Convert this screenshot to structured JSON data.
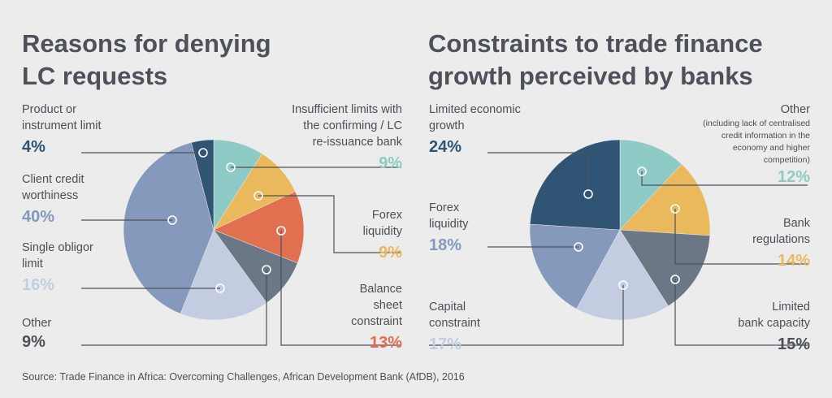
{
  "charts": [
    {
      "title_lines": [
        "Reasons for denying",
        "LC requests"
      ]
    },
    {
      "title_lines": [
        "Constraints to trade finance",
        "growth perceived by banks"
      ]
    }
  ],
  "source": "Source: Trade Finance in Africa: Overcoming Challenges, African Development Bank (AfDB), 2016",
  "chart_data": [
    {
      "type": "pie",
      "title": "Reasons for denying LC requests",
      "slices": [
        {
          "lines": [
            "Insufficient limits with",
            "the confirming / LC",
            "re-issuance bank"
          ],
          "value": 9,
          "label": "9%",
          "color": "#8ecbc6"
        },
        {
          "lines": [
            "Forex",
            "liquidity"
          ],
          "value": 9,
          "label": "9%",
          "color": "#eab95c"
        },
        {
          "lines": [
            "Balance",
            "sheet",
            "constraint"
          ],
          "value": 13,
          "label": "13%",
          "color": "#e0704f"
        },
        {
          "lines": [
            "Other"
          ],
          "value": 9,
          "label": "9%",
          "color": "#6c7785"
        },
        {
          "lines": [
            "Single obligor",
            "limit"
          ],
          "value": 16,
          "label": "16%",
          "color": "#c3cce1"
        },
        {
          "lines": [
            "Client credit",
            "worthiness"
          ],
          "value": 40,
          "label": "40%",
          "color": "#8499bc"
        },
        {
          "lines": [
            "Product or",
            "instrument limit"
          ],
          "value": 4,
          "label": "4%",
          "color": "#2f5474"
        }
      ]
    },
    {
      "type": "pie",
      "title": "Constraints to trade finance growth perceived by banks",
      "slices": [
        {
          "lines": [
            "Other"
          ],
          "note": [
            "(including lack of centralised",
            "credit information in the",
            "economy and higher",
            "competition)"
          ],
          "value": 12,
          "label": "12%",
          "color": "#8ecbc6"
        },
        {
          "lines": [
            "Bank",
            "regulations"
          ],
          "value": 14,
          "label": "14%",
          "color": "#eab95c"
        },
        {
          "lines": [
            "Limited",
            "bank capacity"
          ],
          "value": 15,
          "label": "15%",
          "color": "#6c7785"
        },
        {
          "lines": [
            "Capital",
            "constraint"
          ],
          "value": 17,
          "label": "17%",
          "color": "#c3cce1"
        },
        {
          "lines": [
            "Forex",
            "liquidity"
          ],
          "value": 18,
          "label": "18%",
          "color": "#8499bc"
        },
        {
          "lines": [
            "Limited economic",
            "growth"
          ],
          "value": 24,
          "label": "24%",
          "color": "#2f5474"
        }
      ]
    }
  ]
}
